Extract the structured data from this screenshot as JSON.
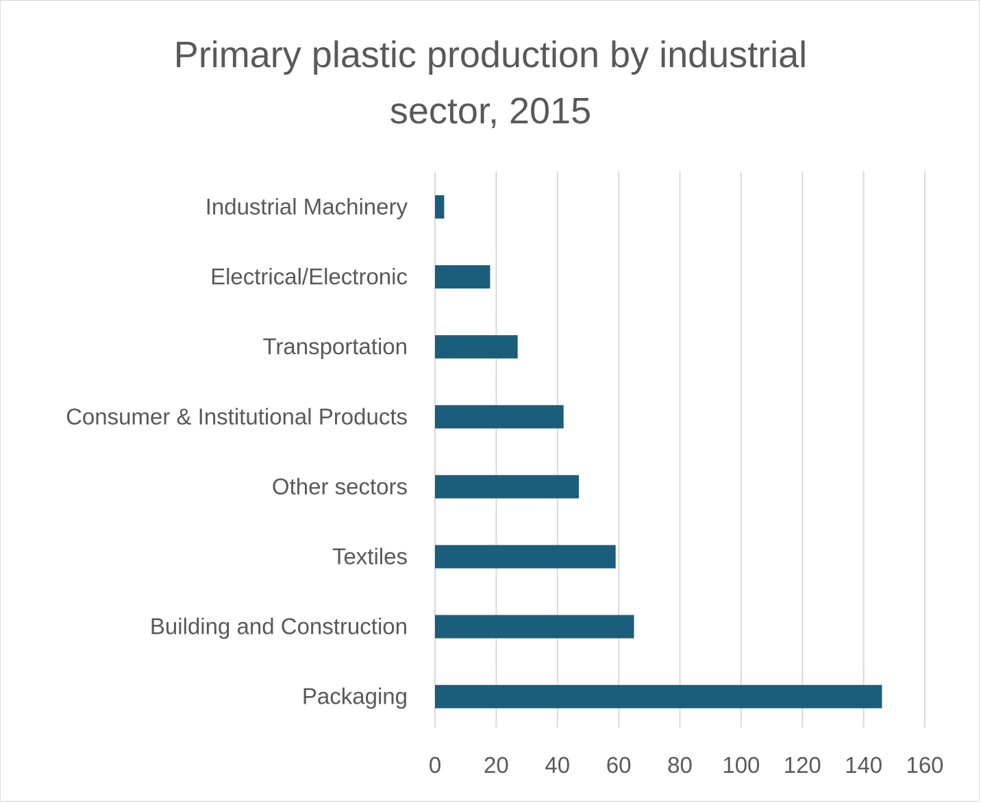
{
  "chart_data": {
    "type": "bar",
    "orientation": "horizontal",
    "title": "Primary plastic production by industrial sector, 2015",
    "xlabel": "",
    "ylabel": "",
    "categories": [
      "Industrial Machinery",
      "Electrical/Electronic",
      "Transportation",
      "Consumer & Institutional Products",
      "Other sectors",
      "Textiles",
      "Building and Construction",
      "Packaging"
    ],
    "values": [
      3,
      18,
      27,
      42,
      47,
      59,
      65,
      146
    ],
    "xlim": [
      0,
      160
    ],
    "xticks": [
      0,
      20,
      40,
      60,
      80,
      100,
      120,
      140,
      160
    ],
    "grid": "vertical",
    "legend": "none",
    "bar_color": "#1b5e7b",
    "gridline_color": "#d9d9d9",
    "text_color": "#595959"
  }
}
